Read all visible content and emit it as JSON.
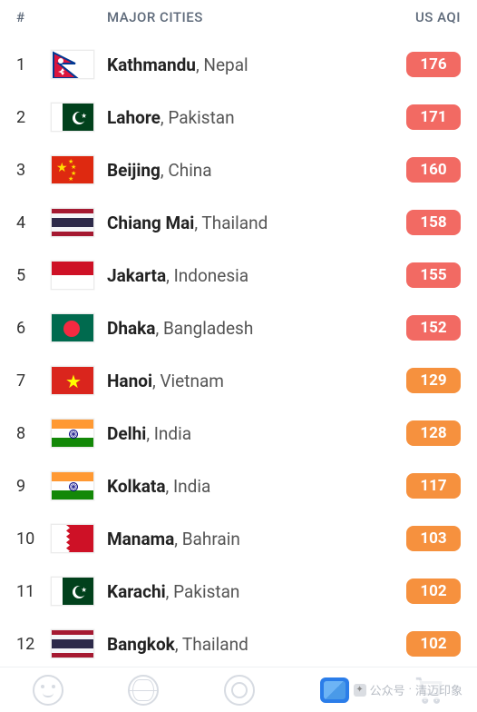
{
  "header": {
    "rank_label": "#",
    "cities_label": "MAJOR CITIES",
    "aqi_label": "US AQI",
    "text_color": "#5e6a7a"
  },
  "aqi_colors": {
    "red": "#f26a63",
    "orange": "#f6913e"
  },
  "rows": [
    {
      "rank": "1",
      "city": "Kathmandu",
      "country": "Nepal",
      "aqi": "176",
      "aqi_level": "red",
      "flag": "np"
    },
    {
      "rank": "2",
      "city": "Lahore",
      "country": "Pakistan",
      "aqi": "171",
      "aqi_level": "red",
      "flag": "pk"
    },
    {
      "rank": "3",
      "city": "Beijing",
      "country": "China",
      "aqi": "160",
      "aqi_level": "red",
      "flag": "cn"
    },
    {
      "rank": "4",
      "city": "Chiang Mai",
      "country": "Thailand",
      "aqi": "158",
      "aqi_level": "red",
      "flag": "th"
    },
    {
      "rank": "5",
      "city": "Jakarta",
      "country": "Indonesia",
      "aqi": "155",
      "aqi_level": "red",
      "flag": "id"
    },
    {
      "rank": "6",
      "city": "Dhaka",
      "country": "Bangladesh",
      "aqi": "152",
      "aqi_level": "red",
      "flag": "bd"
    },
    {
      "rank": "7",
      "city": "Hanoi",
      "country": "Vietnam",
      "aqi": "129",
      "aqi_level": "orange",
      "flag": "vn"
    },
    {
      "rank": "8",
      "city": "Delhi",
      "country": "India",
      "aqi": "128",
      "aqi_level": "orange",
      "flag": "in"
    },
    {
      "rank": "9",
      "city": "Kolkata",
      "country": "India",
      "aqi": "117",
      "aqi_level": "orange",
      "flag": "in"
    },
    {
      "rank": "10",
      "city": "Manama",
      "country": "Bahrain",
      "aqi": "103",
      "aqi_level": "orange",
      "flag": "bh"
    },
    {
      "rank": "11",
      "city": "Karachi",
      "country": "Pakistan",
      "aqi": "102",
      "aqi_level": "orange",
      "flag": "pk"
    },
    {
      "rank": "12",
      "city": "Bangkok",
      "country": "Thailand",
      "aqi": "102",
      "aqi_level": "orange",
      "flag": "th"
    }
  ],
  "flags": {
    "np": {
      "bg": "#ffffff"
    },
    "pk": {
      "bg": "#01411c",
      "white_bar": "#ffffff"
    },
    "cn": {
      "bg": "#de2910",
      "star": "#ffde00"
    },
    "th": {
      "red": "#a51931",
      "white": "#f4f5f8",
      "blue": "#2d2a4a"
    },
    "id": {
      "red": "#ce1126",
      "white": "#ffffff"
    },
    "bd": {
      "bg": "#006a4e",
      "circle": "#f42a41"
    },
    "vn": {
      "bg": "#da251d",
      "star": "#ffff00"
    },
    "in": {
      "saffron": "#ff9933",
      "white": "#ffffff",
      "green": "#138808",
      "chakra": "#000080"
    },
    "bh": {
      "white": "#ffffff",
      "red": "#ce1126"
    }
  },
  "watermark": {
    "label": "公众号",
    "name": "清迈印象"
  },
  "footer": {
    "icons": [
      "face-icon",
      "globe-icon",
      "target-icon",
      "map-icon",
      "cart-icon"
    ],
    "active_index": 3
  }
}
